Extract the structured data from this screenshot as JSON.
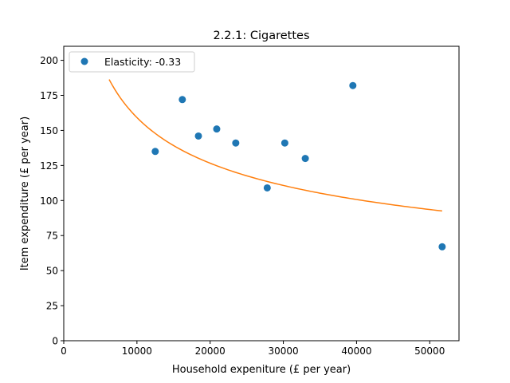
{
  "chart_data": {
    "type": "scatter",
    "title": "2.2.1: Cigarettes",
    "xlabel": "Household expeniture (£ per year)",
    "ylabel": "Item expenditure (£ per year)",
    "xlim": [
      0,
      54000
    ],
    "ylim": [
      0,
      210
    ],
    "xticks": [
      0,
      10000,
      20000,
      30000,
      40000,
      50000
    ],
    "yticks": [
      0,
      25,
      50,
      75,
      100,
      125,
      150,
      175,
      200
    ],
    "grid": false,
    "legend": {
      "position": "upper-left"
    },
    "series": [
      {
        "name": "Elasticity: -0.33",
        "kind": "scatter",
        "color": "#1f77b4",
        "x": [
          12500,
          16200,
          18400,
          20900,
          23500,
          27800,
          30200,
          33000,
          39500,
          51700
        ],
        "y": [
          135,
          172,
          146,
          151,
          141,
          109,
          141,
          130,
          182,
          67
        ]
      },
      {
        "kind": "fit-line",
        "color": "#ff7f0e",
        "model": "y = a * x^b",
        "a": 3325,
        "b": -0.33,
        "x_range": [
          6200,
          51700
        ]
      }
    ]
  }
}
